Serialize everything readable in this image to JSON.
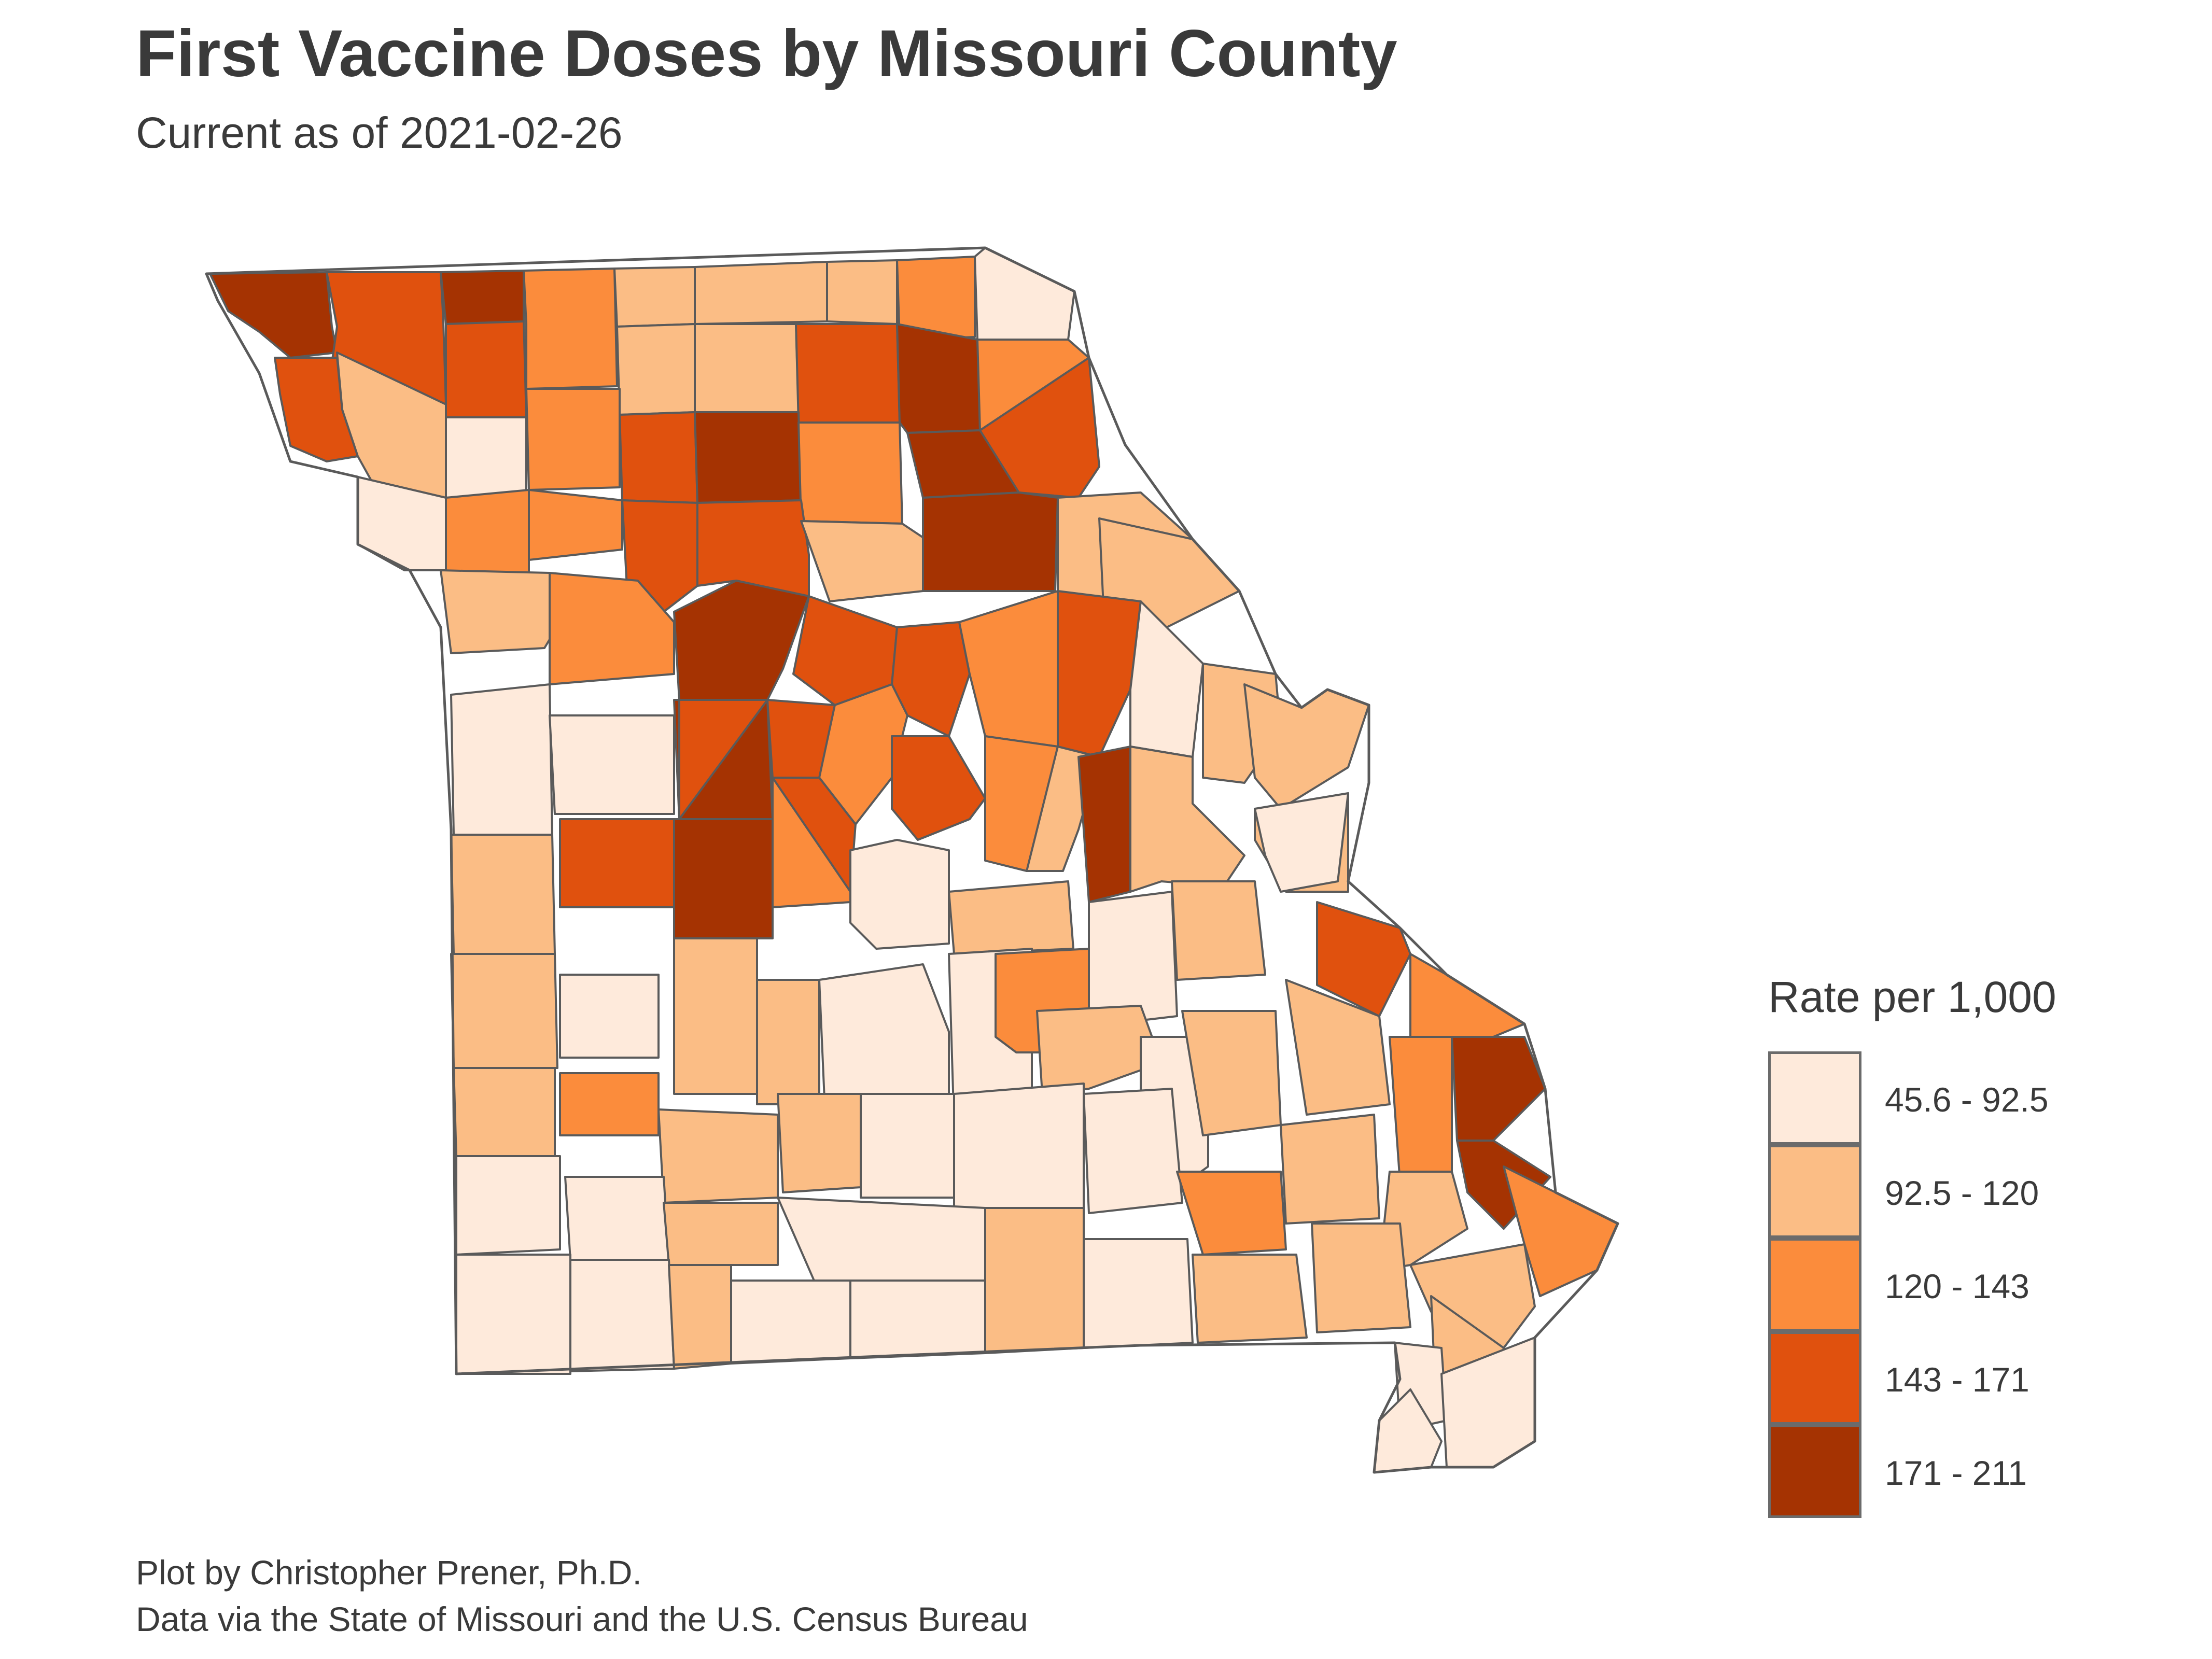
{
  "title": "First Vaccine Doses by Missouri County",
  "subtitle": "Current as of 2021-02-26",
  "caption": {
    "line1": "Plot by Christopher Prener, Ph.D.",
    "line2": "Data via the State of Missouri and the U.S. Census Bureau"
  },
  "legend": {
    "title": "Rate per 1,000",
    "classes": [
      {
        "label": "45.6 - 92.5",
        "color": "#feeadb"
      },
      {
        "label": "92.5 - 120",
        "color": "#fbbd85"
      },
      {
        "label": "120 - 143",
        "color": "#fb8c3c"
      },
      {
        "label": "143 - 171",
        "color": "#e0510e"
      },
      {
        "label": "171 - 211",
        "color": "#a53302"
      }
    ]
  },
  "colors": {
    "border": "#5a5a5a",
    "text": "#3a3a3a"
  }
}
